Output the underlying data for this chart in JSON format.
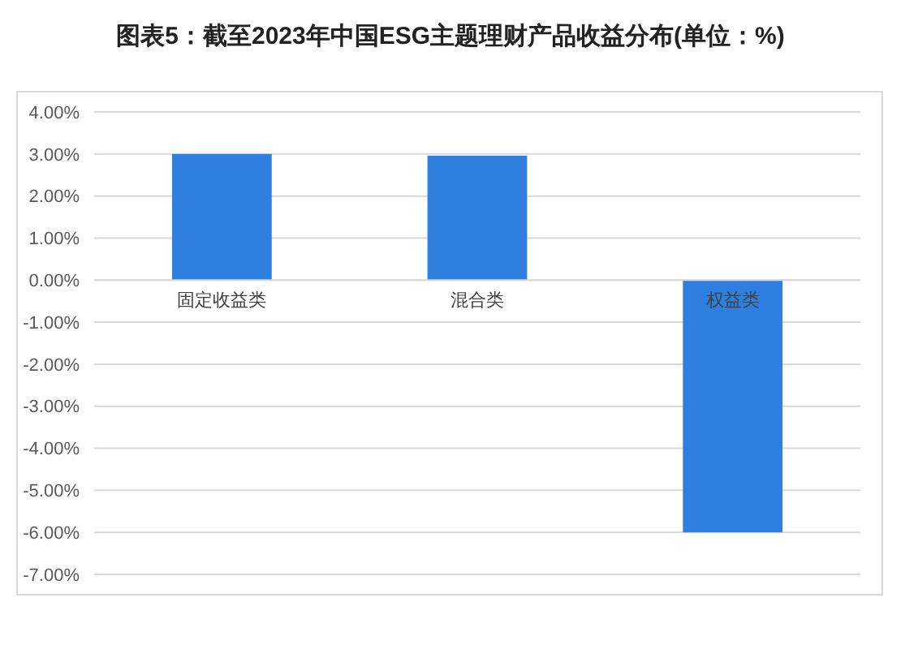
{
  "chart_data": {
    "type": "bar",
    "title": "图表5：截至2023年中国ESG主题理财产品收益分布(单位：%)",
    "categories": [
      "固定收益类",
      "混合类",
      "权益类"
    ],
    "values": [
      3.0,
      2.96,
      -6.0
    ],
    "color": "#2f7fe0",
    "ylim": [
      -7,
      4
    ],
    "yticks": [
      {
        "value": -7,
        "label": "-7.00%"
      },
      {
        "value": -6,
        "label": "-6.00%"
      },
      {
        "value": -5,
        "label": "-5.00%"
      },
      {
        "value": -4,
        "label": "-4.00%"
      },
      {
        "value": -3,
        "label": "-3.00%"
      },
      {
        "value": -2,
        "label": "-2.00%"
      },
      {
        "value": -1,
        "label": "-1.00%"
      },
      {
        "value": 0,
        "label": "0.00%"
      },
      {
        "value": 1,
        "label": "1.00%"
      },
      {
        "value": 2,
        "label": "2.00%"
      },
      {
        "value": 3,
        "label": "3.00%"
      },
      {
        "value": 4,
        "label": "4.00%"
      }
    ],
    "grid": "y"
  }
}
